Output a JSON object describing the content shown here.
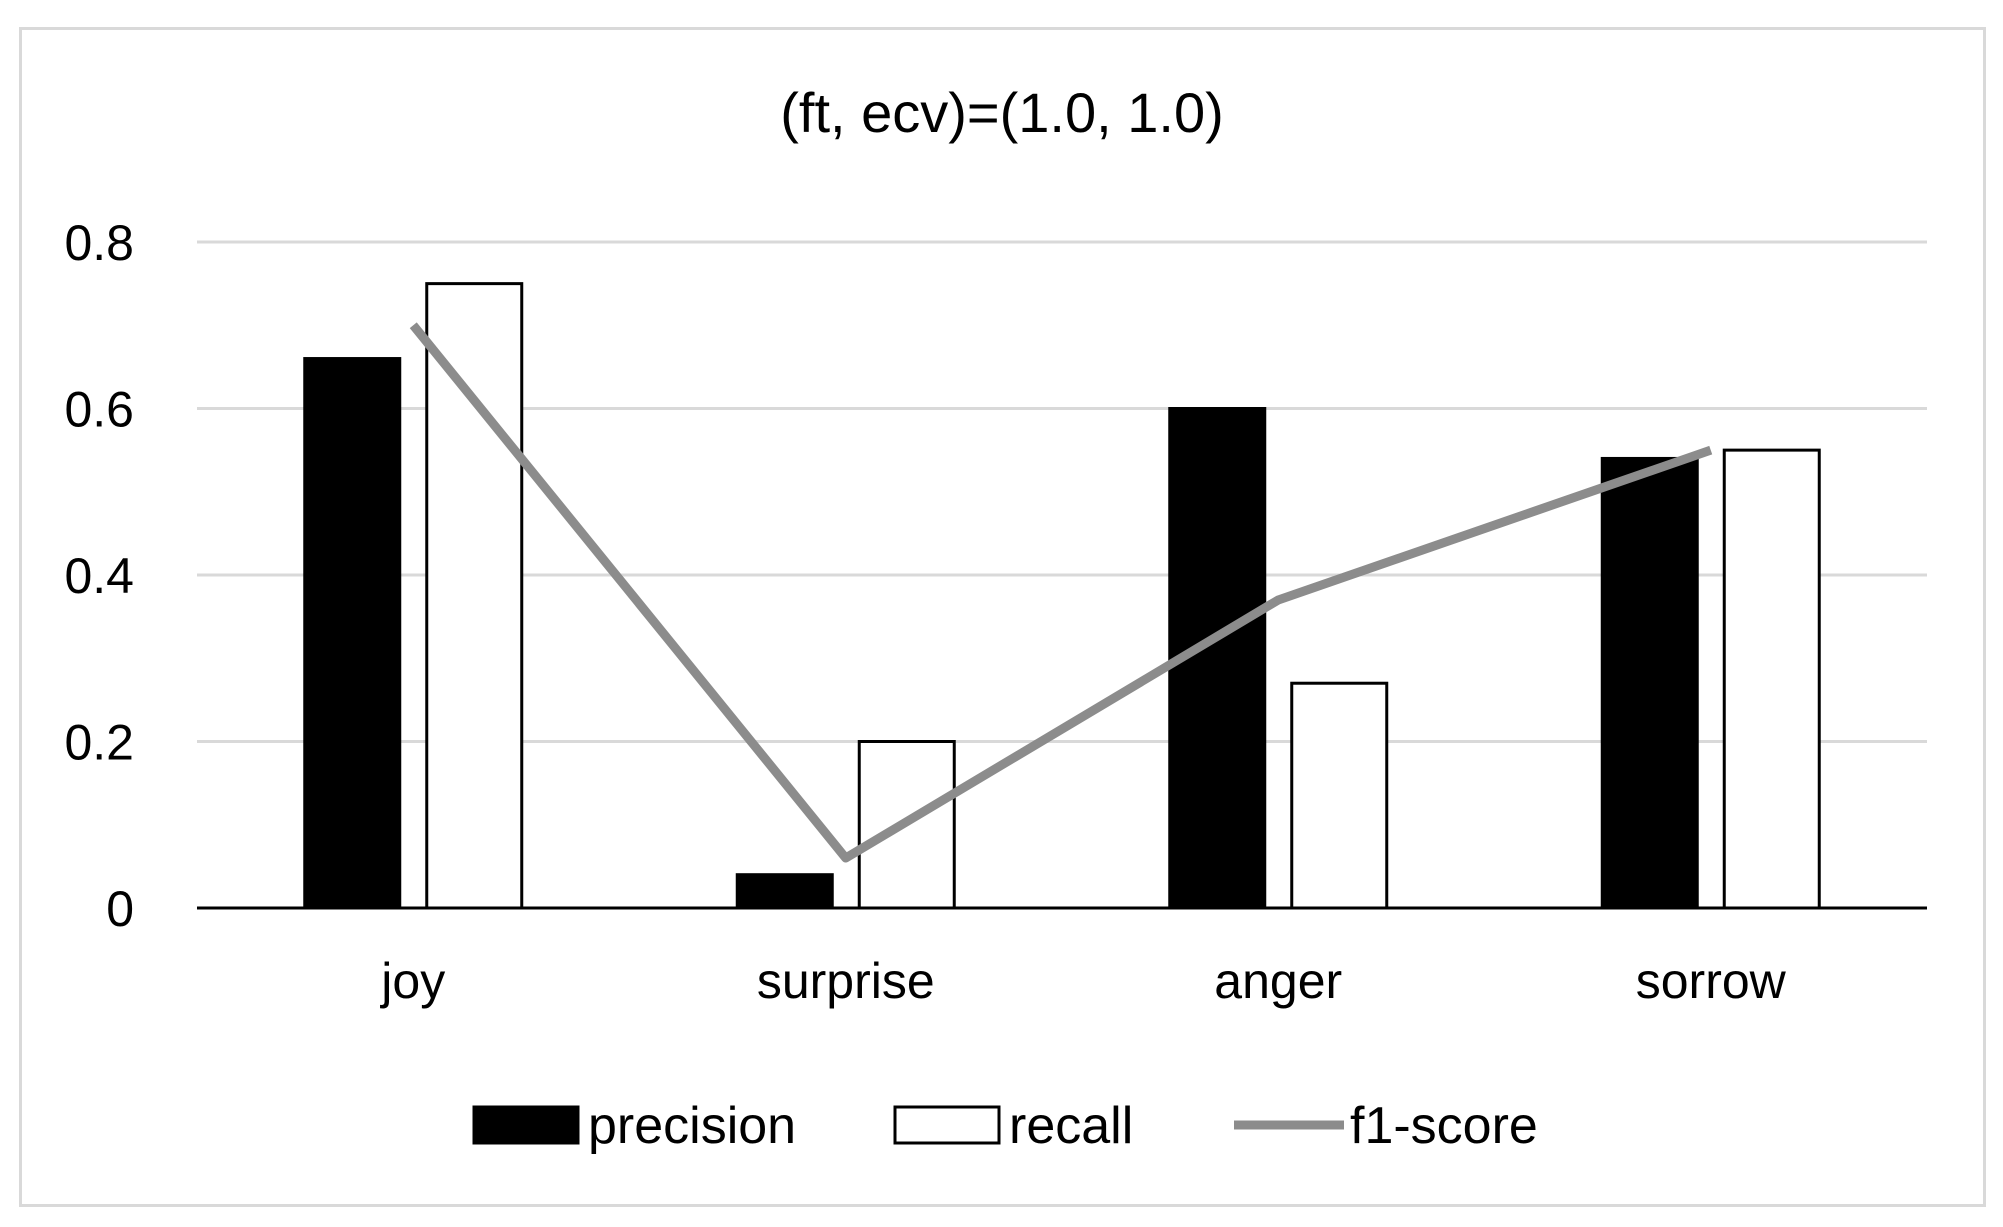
{
  "chart_data": {
    "type": "bar",
    "title": "(ft, ecv)=(1.0, 1.0)",
    "xlabel": "",
    "ylabel": "",
    "categories": [
      "joy",
      "surprise",
      "anger",
      "sorrow"
    ],
    "ylim": [
      0,
      0.8
    ],
    "yticks": [
      0,
      0.2,
      0.4,
      0.6,
      0.8
    ],
    "ytick_labels": [
      "0",
      "0.2",
      "0.4",
      "0.6",
      "0.8"
    ],
    "grid": true,
    "legend_position": "bottom",
    "series": [
      {
        "name": "precision",
        "kind": "bar",
        "values": [
          0.66,
          0.04,
          0.6,
          0.54
        ],
        "fill": "#000000",
        "stroke": "#000000"
      },
      {
        "name": "recall",
        "kind": "bar",
        "values": [
          0.75,
          0.2,
          0.27,
          0.55
        ],
        "fill": "#ffffff",
        "stroke": "#000000"
      },
      {
        "name": "f1-score",
        "kind": "line",
        "values": [
          0.7,
          0.06,
          0.37,
          0.55
        ],
        "stroke": "#8c8c8c"
      }
    ]
  },
  "colors": {
    "gridline": "#d9d9d9",
    "axis": "#000000",
    "frame": "#d9d9d9"
  }
}
